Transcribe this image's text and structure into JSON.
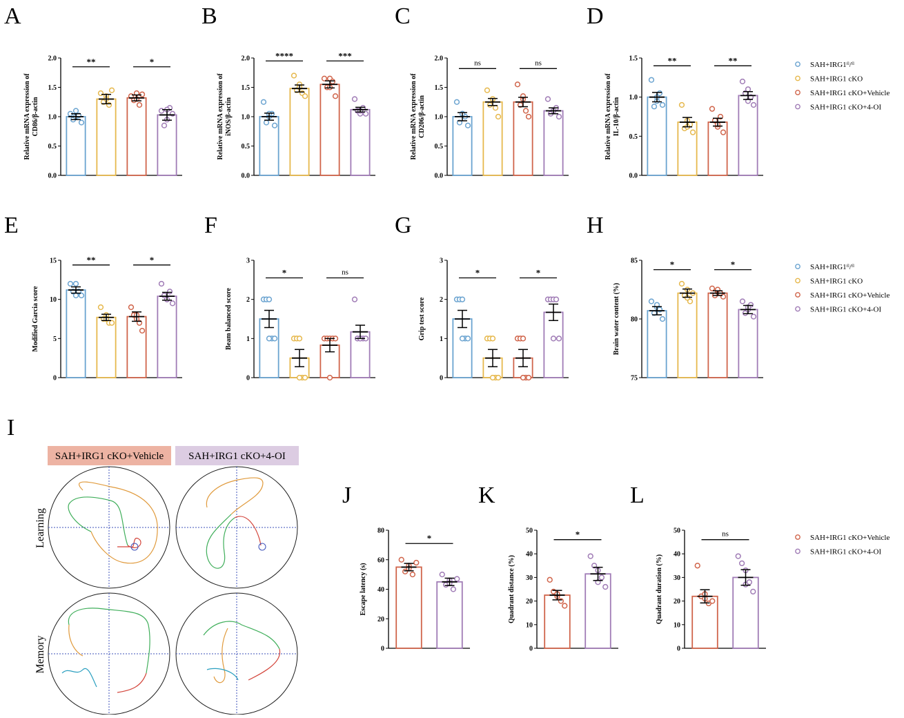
{
  "colors": {
    "blue": "#6AA3D0",
    "yellow": "#E6B84C",
    "red": "#D0644A",
    "purple": "#A07CB6",
    "errbar": "#000000",
    "maze_circle": "#1a1a1a",
    "maze_cross": "#3b4fb8"
  },
  "panel_letters": [
    "A",
    "B",
    "C",
    "D",
    "E",
    "F",
    "G",
    "H",
    "I",
    "J",
    "K",
    "L"
  ],
  "legends": {
    "four_group": [
      {
        "label": "SAH+IRG1ᶠˡ/ᶠˡ",
        "color": "blue"
      },
      {
        "label": "SAH+IRG1 cKO",
        "color": "yellow"
      },
      {
        "label": "SAH+IRG1 cKO+Vehicle",
        "color": "red"
      },
      {
        "label": "SAH+IRG1 cKO+4-OI",
        "color": "purple"
      }
    ],
    "two_group": [
      {
        "label": "SAH+IRG1 cKO+Vehicle",
        "color": "red"
      },
      {
        "label": "SAH+IRG1 cKO+4-OI",
        "color": "purple"
      }
    ]
  },
  "maze": {
    "conditions": [
      "SAH+IRG1 cKO+Vehicle",
      "SAH+IRG1 cKO+4-OI"
    ],
    "rows": [
      "Learning",
      "Memory"
    ]
  },
  "chart_data": [
    {
      "id": "A",
      "type": "bar",
      "ylabel": "Relative mRNA expression of CD86/β-actin",
      "ylim": [
        0,
        2.0
      ],
      "yticks": [
        "0.0",
        "0.5",
        "1.0",
        "1.5",
        "2.0"
      ],
      "categories": [
        "SAH+IRG1ᶠˡ/ᶠˡ",
        "SAH+IRG1 cKO",
        "SAH+IRG1 cKO+Vehicle",
        "SAH+IRG1 cKO+4-OI"
      ],
      "values": [
        1.0,
        1.3,
        1.32,
        1.03
      ],
      "sem": [
        0.05,
        0.08,
        0.05,
        0.09
      ],
      "points": [
        [
          1.05,
          0.95,
          1.0,
          1.02,
          0.9,
          1.1
        ],
        [
          1.4,
          1.25,
          1.35,
          1.2,
          1.45,
          1.3
        ],
        [
          1.35,
          1.28,
          1.4,
          1.2,
          1.38,
          1.3
        ],
        [
          1.1,
          0.85,
          0.95,
          1.15,
          1.05,
          1.12
        ]
      ],
      "significance": [
        {
          "label": "**",
          "from": 0,
          "to": 1,
          "y": 1.85
        },
        {
          "label": "*",
          "from": 2,
          "to": 3,
          "y": 1.85
        }
      ]
    },
    {
      "id": "B",
      "type": "bar",
      "ylabel": "Relative mRNA expression of iNOS/β-actin",
      "ylim": [
        0,
        2.0
      ],
      "yticks": [
        "0.0",
        "0.5",
        "1.0",
        "1.5",
        "2.0"
      ],
      "categories": [
        "SAH+IRG1ᶠˡ/ᶠˡ",
        "SAH+IRG1 cKO",
        "SAH+IRG1 cKO+Vehicle",
        "SAH+IRG1 cKO+4-OI"
      ],
      "values": [
        1.0,
        1.48,
        1.55,
        1.12
      ],
      "sem": [
        0.06,
        0.06,
        0.06,
        0.04
      ],
      "points": [
        [
          1.25,
          0.9,
          1.0,
          1.05,
          0.85,
          1.05
        ],
        [
          1.7,
          1.45,
          1.55,
          1.4,
          1.35,
          1.5
        ],
        [
          1.65,
          1.5,
          1.65,
          1.6,
          1.35,
          1.5
        ],
        [
          1.3,
          1.1,
          1.05,
          1.15,
          1.05,
          1.1
        ]
      ],
      "significance": [
        {
          "label": "****",
          "from": 0,
          "to": 1,
          "y": 1.95
        },
        {
          "label": "***",
          "from": 2,
          "to": 3,
          "y": 1.95
        }
      ]
    },
    {
      "id": "C",
      "type": "bar",
      "ylabel": "Relative mRNA expression of CD206/β-actin",
      "ylim": [
        0,
        2.0
      ],
      "yticks": [
        "0.0",
        "0.5",
        "1.0",
        "1.5",
        "2.0"
      ],
      "categories": [
        "SAH+IRG1ᶠˡ/ᶠˡ",
        "SAH+IRG1 cKO",
        "SAH+IRG1 cKO+Vehicle",
        "SAH+IRG1 cKO+4-OI"
      ],
      "values": [
        1.0,
        1.25,
        1.25,
        1.1
      ],
      "sem": [
        0.07,
        0.06,
        0.08,
        0.05
      ],
      "points": [
        [
          1.25,
          0.9,
          1.05,
          1.0,
          0.85,
          1.05
        ],
        [
          1.45,
          1.2,
          1.3,
          1.15,
          1.0,
          1.3
        ],
        [
          1.55,
          1.2,
          1.3,
          1.1,
          1.0,
          1.35
        ],
        [
          1.3,
          1.05,
          1.1,
          1.15,
          1.0,
          1.1
        ]
      ],
      "significance": [
        {
          "label": "ns",
          "from": 0,
          "to": 1,
          "y": 1.82
        },
        {
          "label": "ns",
          "from": 2,
          "to": 3,
          "y": 1.82
        }
      ]
    },
    {
      "id": "D",
      "type": "bar",
      "ylabel": "Relative mRNA expression of IL-10/β-actin",
      "ylim": [
        0,
        1.5
      ],
      "yticks": [
        "0.0",
        "0.5",
        "1.0",
        "1.5"
      ],
      "categories": [
        "SAH+IRG1ᶠˡ/ᶠˡ",
        "SAH+IRG1 cKO",
        "SAH+IRG1 cKO+Vehicle",
        "SAH+IRG1 cKO+4-OI"
      ],
      "values": [
        1.0,
        0.68,
        0.68,
        1.02
      ],
      "sem": [
        0.06,
        0.06,
        0.05,
        0.05
      ],
      "points": [
        [
          1.22,
          0.88,
          0.95,
          1.05,
          0.9,
          1.0
        ],
        [
          0.9,
          0.6,
          0.7,
          0.65,
          0.55,
          0.62
        ],
        [
          0.85,
          0.7,
          0.62,
          0.75,
          0.55,
          0.65
        ],
        [
          1.2,
          1.05,
          1.1,
          1.0,
          0.9,
          0.95
        ]
      ],
      "significance": [
        {
          "label": "**",
          "from": 0,
          "to": 1,
          "y": 1.4
        },
        {
          "label": "**",
          "from": 2,
          "to": 3,
          "y": 1.4
        }
      ]
    },
    {
      "id": "E",
      "type": "bar",
      "ylabel": "Modified Garcia score",
      "ylim": [
        0,
        15
      ],
      "yticks": [
        "0",
        "5",
        "10",
        "15"
      ],
      "categories": [
        "SAH+IRG1ᶠˡ/ᶠˡ",
        "SAH+IRG1 cKO",
        "SAH+IRG1 cKO+Vehicle",
        "SAH+IRG1 cKO+4-OI"
      ],
      "values": [
        11.2,
        7.7,
        7.8,
        10.4
      ],
      "sem": [
        0.4,
        0.4,
        0.6,
        0.5
      ],
      "points": [
        [
          12,
          11,
          12,
          11,
          10.5,
          10.5
        ],
        [
          9,
          7.5,
          8,
          7,
          7,
          7.5
        ],
        [
          9,
          8,
          8,
          7,
          6,
          7.5
        ],
        [
          12,
          10.5,
          10,
          11,
          9.5,
          10
        ]
      ],
      "significance": [
        {
          "label": "**",
          "from": 0,
          "to": 1,
          "y": 14.4
        },
        {
          "label": "*",
          "from": 2,
          "to": 3,
          "y": 14.4
        }
      ]
    },
    {
      "id": "F",
      "type": "bar",
      "ylabel": "Beam balanced score",
      "ylim": [
        0,
        3
      ],
      "yticks": [
        "0",
        "1",
        "2",
        "3"
      ],
      "categories": [
        "SAH+IRG1ᶠˡ/ᶠˡ",
        "SAH+IRG1 cKO",
        "SAH+IRG1 cKO+Vehicle",
        "SAH+IRG1 cKO+4-OI"
      ],
      "values": [
        1.5,
        0.5,
        0.83,
        1.17
      ],
      "sem": [
        0.22,
        0.22,
        0.17,
        0.17
      ],
      "points": [
        [
          2,
          2,
          2,
          1,
          1,
          1
        ],
        [
          1,
          1,
          1,
          0,
          0,
          0
        ],
        [
          1,
          1,
          1,
          1,
          1,
          0
        ],
        [
          2,
          1,
          1,
          1,
          1,
          1
        ]
      ],
      "significance": [
        {
          "label": "*",
          "from": 0,
          "to": 1,
          "y": 2.55
        },
        {
          "label": "ns",
          "from": 2,
          "to": 3,
          "y": 2.55
        }
      ]
    },
    {
      "id": "G",
      "type": "bar",
      "ylabel": "Grip test score",
      "ylim": [
        0,
        3
      ],
      "yticks": [
        "0",
        "1",
        "2",
        "3"
      ],
      "categories": [
        "SAH+IRG1ᶠˡ/ᶠˡ",
        "SAH+IRG1 cKO",
        "SAH+IRG1 cKO+Vehicle",
        "SAH+IRG1 cKO+4-OI"
      ],
      "values": [
        1.5,
        0.5,
        0.5,
        1.67
      ],
      "sem": [
        0.22,
        0.22,
        0.22,
        0.21
      ],
      "points": [
        [
          2,
          2,
          2,
          1,
          1,
          1
        ],
        [
          1,
          1,
          1,
          0,
          0,
          0
        ],
        [
          1,
          1,
          1,
          0,
          0,
          0
        ],
        [
          2,
          2,
          2,
          2,
          1,
          1
        ]
      ],
      "significance": [
        {
          "label": "*",
          "from": 0,
          "to": 1,
          "y": 2.55
        },
        {
          "label": "*",
          "from": 2,
          "to": 3,
          "y": 2.55
        }
      ]
    },
    {
      "id": "H",
      "type": "bar",
      "ylabel": "Brain water content (%)",
      "ylim": [
        75,
        85
      ],
      "yticks": [
        "75",
        "80",
        "85"
      ],
      "categories": [
        "SAH+IRG1ᶠˡ/ᶠˡ",
        "SAH+IRG1 cKO",
        "SAH+IRG1 cKO+Vehicle",
        "SAH+IRG1 cKO+4-OI"
      ],
      "values": [
        80.7,
        82.2,
        82.2,
        80.8
      ],
      "sem": [
        0.35,
        0.35,
        0.2,
        0.35
      ],
      "points": [
        [
          81.5,
          80.5,
          81,
          80.8,
          80,
          81.2
        ],
        [
          83,
          82,
          82.5,
          81.5,
          82.2,
          81.8
        ],
        [
          82.6,
          82,
          82.4,
          82.2,
          81.9,
          82.5
        ],
        [
          81.5,
          80.5,
          80.8,
          81.2,
          80.2,
          81
        ]
      ],
      "significance": [
        {
          "label": "*",
          "from": 0,
          "to": 1,
          "y": 84.2
        },
        {
          "label": "*",
          "from": 2,
          "to": 3,
          "y": 84.2
        }
      ]
    },
    {
      "id": "J",
      "type": "bar",
      "ylabel": "Escape latency (s)",
      "ylim": [
        0,
        80
      ],
      "yticks": [
        "0",
        "20",
        "40",
        "60",
        "80"
      ],
      "categories": [
        "SAH+IRG1 cKO+Vehicle",
        "SAH+IRG1 cKO+4-OI"
      ],
      "values": [
        55,
        45
      ],
      "sem": [
        2.5,
        2.5
      ],
      "points": [
        [
          60,
          52,
          56,
          50,
          58,
          54
        ],
        [
          50,
          43,
          46,
          40,
          47,
          44
        ]
      ],
      "significance": [
        {
          "label": "*",
          "from": 0,
          "to": 1,
          "y": 71
        }
      ]
    },
    {
      "id": "K",
      "type": "bar",
      "ylabel": "Quadrant distance (%)",
      "ylim": [
        0,
        50
      ],
      "yticks": [
        "0",
        "10",
        "20",
        "30",
        "40",
        "50"
      ],
      "categories": [
        "SAH+IRG1 cKO+Vehicle",
        "SAH+IRG1 cKO+4-OI"
      ],
      "values": [
        22.5,
        31.5
      ],
      "sem": [
        2,
        2.8
      ],
      "points": [
        [
          29,
          24,
          22,
          20,
          18,
          23
        ],
        [
          39,
          35,
          33,
          30,
          26,
          28
        ]
      ],
      "significance": [
        {
          "label": "*",
          "from": 0,
          "to": 1,
          "y": 46
        }
      ]
    },
    {
      "id": "L",
      "type": "bar",
      "ylabel": "Quadrant duration (%)",
      "ylim": [
        0,
        50
      ],
      "yticks": [
        "0",
        "10",
        "20",
        "30",
        "40",
        "50"
      ],
      "categories": [
        "SAH+IRG1 cKO+Vehicle",
        "SAH+IRG1 cKO+4-OI"
      ],
      "values": [
        22,
        30
      ],
      "sem": [
        2.8,
        3.3
      ],
      "points": [
        [
          35,
          22,
          21,
          19,
          20,
          23
        ],
        [
          39,
          36,
          33,
          28,
          24,
          27
        ]
      ],
      "significance": [
        {
          "label": "ns",
          "from": 0,
          "to": 1,
          "y": 46
        }
      ]
    }
  ]
}
